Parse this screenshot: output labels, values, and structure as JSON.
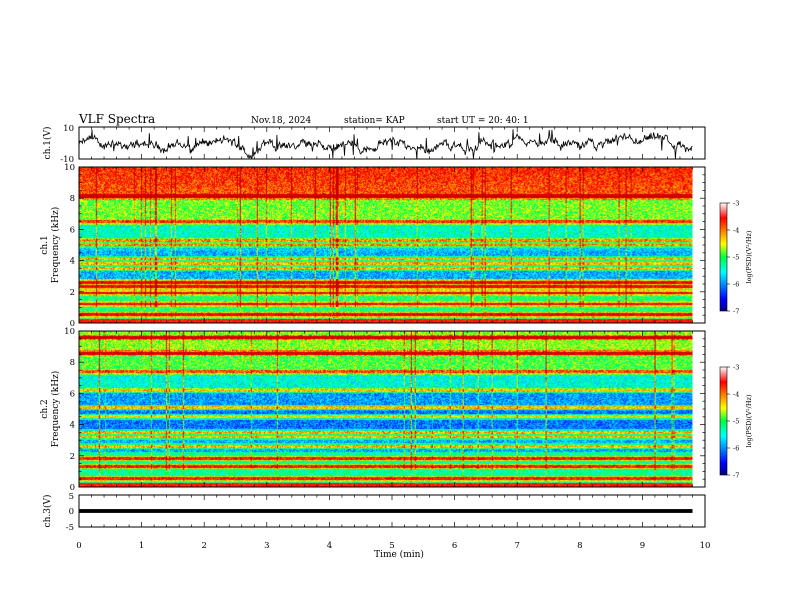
{
  "header": {
    "title": "VLF Spectra",
    "date": "Nov.18, 2024",
    "station": "station= KAP",
    "start": "start  UT  =   20: 40: 1"
  },
  "chart_data": [
    {
      "type": "line",
      "ylabel": "ch.1(V)",
      "ylim": [
        -10,
        10
      ],
      "yticks": [
        "10",
        "-10"
      ],
      "xlim": [
        0,
        10
      ],
      "data_end_x": 9.8,
      "description_note": "",
      "color": "#000000"
    },
    {
      "type": "heatmap",
      "ylabel": "ch.1\nFrequency (kHz)",
      "ylabel_lines": [
        "ch.1",
        "Frequency (kHz)"
      ],
      "ylim": [
        0,
        10
      ],
      "yticks": [
        "0",
        "2",
        "4",
        "6",
        "8",
        "10"
      ],
      "xlim": [
        0,
        10
      ],
      "data_end_x": 9.8,
      "colorbar": {
        "label": "log(PSD)(V²/Hz)",
        "range": [
          -7,
          -3
        ],
        "ticks": [
          "-3",
          "-4",
          "-5",
          "-6",
          "-7"
        ]
      },
      "bands_khz": [
        0.5,
        1.2,
        1.9,
        2.3,
        2.6,
        3.5,
        3.8,
        4.1,
        5.0,
        5.3,
        6.5,
        8.1
      ]
    },
    {
      "type": "heatmap",
      "ylabel_lines": [
        "ch.2",
        "Frequency (kHz)"
      ],
      "ylim": [
        0,
        10
      ],
      "yticks": [
        "0",
        "2",
        "4",
        "6",
        "8",
        "10"
      ],
      "xlim": [
        0,
        10
      ],
      "data_end_x": 9.8,
      "colorbar": {
        "label": "log(PSD)(V²/Hz)",
        "range": [
          -7,
          -3
        ],
        "ticks": [
          "-3",
          "-4",
          "-5",
          "-6",
          "-7"
        ]
      },
      "bands_khz": [
        0.5,
        1.3,
        1.8,
        2.6,
        3.2,
        3.5,
        4.5,
        5.1,
        6.2,
        7.4,
        8.6,
        9.6
      ]
    },
    {
      "type": "line",
      "ylabel": "ch.3(V)",
      "ylim": [
        -5,
        5
      ],
      "yticks": [
        "5",
        "0",
        "-5"
      ],
      "xlim": [
        0,
        10
      ],
      "data_end_x": 9.8,
      "color": "#000000",
      "xlabel": "Time  (min)",
      "xticks": [
        "0",
        "1",
        "2",
        "3",
        "4",
        "5",
        "6",
        "7",
        "8",
        "9",
        "10"
      ]
    }
  ]
}
